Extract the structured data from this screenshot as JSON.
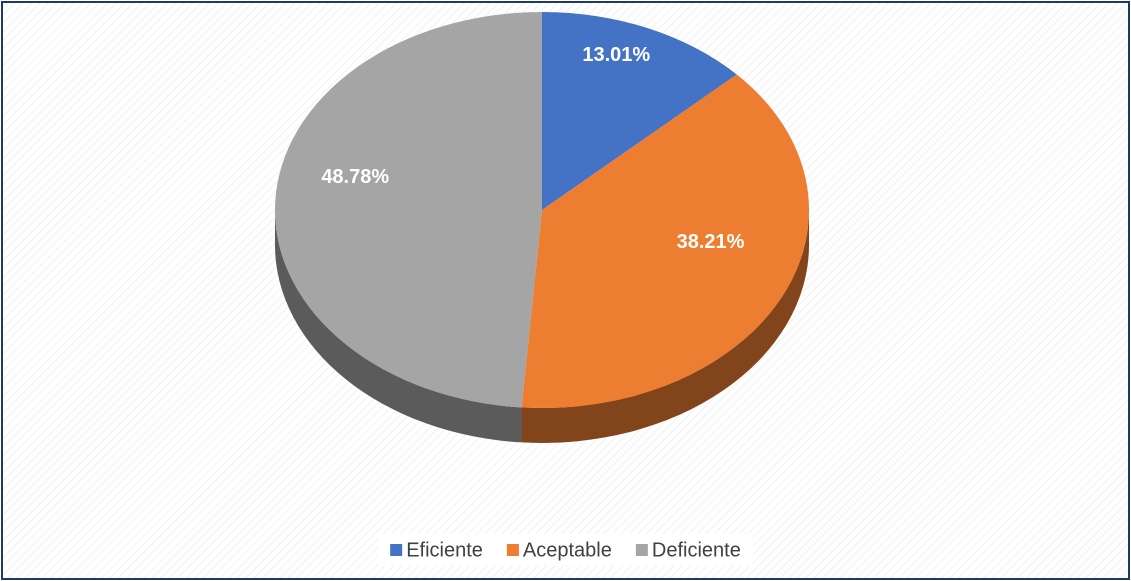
{
  "chart_data": {
    "type": "pie",
    "categories": [
      "Eficiente",
      "Aceptable",
      "Deficiente"
    ],
    "series": [
      {
        "values": [
          13.01,
          38.21,
          48.78
        ],
        "value_labels": [
          "13.01%",
          "38.21%",
          "48.78%"
        ],
        "colors": [
          "#4472c4",
          "#ed7d31",
          "#a5a5a5"
        ]
      }
    ],
    "legend": "bottom"
  }
}
